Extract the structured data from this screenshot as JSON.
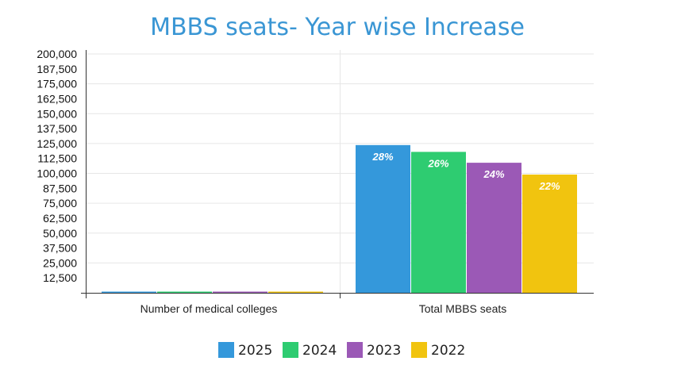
{
  "chart_data": {
    "type": "bar",
    "title": "MBBS seats- Year wise Increase",
    "categories": [
      "Number of medical colleges",
      "Total MBBS seats"
    ],
    "series": [
      {
        "name": "2025",
        "color": "#3498db",
        "values": [
          780,
          123700
        ],
        "labels": [
          "",
          "28%"
        ]
      },
      {
        "name": "2024",
        "color": "#2ecc71",
        "values": [
          731,
          118000
        ],
        "labels": [
          "",
          "26%"
        ]
      },
      {
        "name": "2023",
        "color": "#9b59b6",
        "values": [
          706,
          108900
        ],
        "labels": [
          "",
          "24%"
        ]
      },
      {
        "name": "2022",
        "color": "#f1c40f",
        "values": [
          654,
          99000
        ],
        "labels": [
          "",
          "22%"
        ]
      }
    ],
    "y_ticks": [
      "200,000",
      "187,500",
      "175,000",
      "162,500",
      "150,000",
      "137,500",
      "125,000",
      "112,500",
      "100,000",
      "87,500",
      "75,000",
      "62,500",
      "50,000",
      "37,500",
      "25,000",
      "12,500"
    ],
    "ylim": [
      0,
      200000
    ],
    "y_step": 12500,
    "xlabel": "",
    "ylabel": "",
    "legend_position": "bottom",
    "grid": true
  }
}
